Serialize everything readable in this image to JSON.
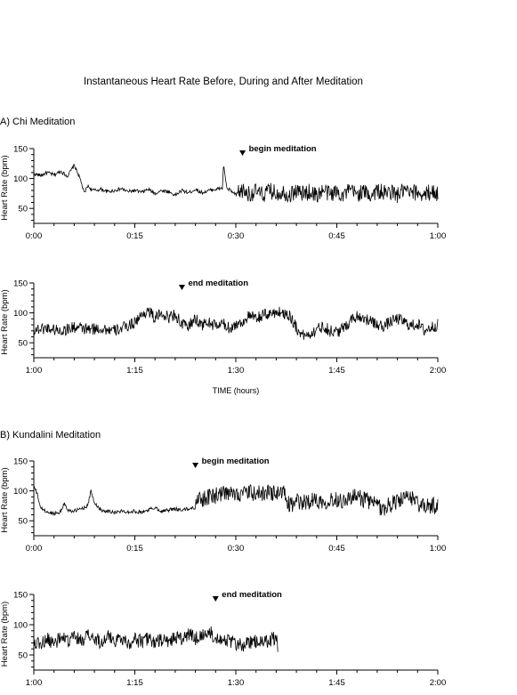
{
  "figure": {
    "title": "Instantaneous Heart Rate Before, During and After Meditation",
    "section_a": "A) Chi Meditation",
    "section_b": "B) Kundalini Meditation",
    "shared_xlabel": "TIME (hours)"
  },
  "chart_data": [
    {
      "type": "line",
      "panel": "A1",
      "ylabel": "Heart Rate (bpm)",
      "ylim": [
        25,
        150
      ],
      "yticks": [
        50,
        100,
        150
      ],
      "xlim": [
        0,
        60
      ],
      "xtick_labels": [
        "0:00",
        "0:15",
        "0:30",
        "0:45",
        "1:00"
      ],
      "annotation": {
        "text": "begin meditation",
        "x_minutes": 31
      },
      "series": [
        {
          "points": [
            [
              0,
              108
            ],
            [
              1,
              105
            ],
            [
              2,
              110
            ],
            [
              3,
              106
            ],
            [
              4,
              112
            ],
            [
              5,
              104
            ],
            [
              6,
              122
            ],
            [
              6.5,
              110
            ],
            [
              7,
              95
            ],
            [
              7.5,
              75
            ],
            [
              8,
              88
            ],
            [
              8.5,
              82
            ],
            [
              9,
              80
            ],
            [
              10,
              82
            ],
            [
              11,
              78
            ],
            [
              12,
              80
            ],
            [
              13,
              83
            ],
            [
              14,
              78
            ],
            [
              15,
              80
            ],
            [
              16,
              77
            ],
            [
              17,
              82
            ],
            [
              18,
              75
            ],
            [
              19,
              80
            ],
            [
              20,
              78
            ],
            [
              21,
              72
            ],
            [
              22,
              80
            ],
            [
              23,
              76
            ],
            [
              24,
              82
            ],
            [
              25,
              76
            ],
            [
              26,
              80
            ],
            [
              27,
              82
            ],
            [
              28,
              84
            ],
            [
              28.2,
              125
            ],
            [
              28.5,
              95
            ],
            [
              28.8,
              80
            ],
            [
              29,
              82
            ],
            [
              30,
              72
            ],
            [
              31,
              80
            ],
            [
              32,
              74
            ],
            [
              33,
              78
            ],
            [
              34,
              72
            ],
            [
              35,
              80
            ],
            [
              36,
              75
            ],
            [
              37,
              78
            ],
            [
              38,
              72
            ],
            [
              39,
              80
            ],
            [
              40,
              74
            ],
            [
              41,
              78
            ],
            [
              42,
              72
            ],
            [
              43,
              80
            ],
            [
              44,
              74
            ],
            [
              45,
              78
            ],
            [
              46,
              73
            ],
            [
              47,
              80
            ],
            [
              48,
              74
            ],
            [
              49,
              78
            ],
            [
              50,
              72
            ],
            [
              51,
              80
            ],
            [
              52,
              75
            ],
            [
              53,
              78
            ],
            [
              54,
              72
            ],
            [
              55,
              80
            ],
            [
              56,
              74
            ],
            [
              57,
              78
            ],
            [
              58,
              72
            ],
            [
              59,
              79
            ],
            [
              60,
              74
            ]
          ],
          "noise_start": 30,
          "noise_amp": 14
        }
      ]
    },
    {
      "type": "line",
      "panel": "A2",
      "ylabel": "Heart Rate (bpm)",
      "ylim": [
        25,
        150
      ],
      "yticks": [
        50,
        100,
        150
      ],
      "xlim": [
        60,
        120
      ],
      "xtick_labels": [
        "1:00",
        "1:15",
        "1:30",
        "1:45",
        "2:00"
      ],
      "annotation": {
        "text": "end meditation",
        "x_minutes": 82
      },
      "series": [
        {
          "points": [
            [
              60,
              72
            ],
            [
              62,
              75
            ],
            [
              64,
              70
            ],
            [
              66,
              76
            ],
            [
              68,
              72
            ],
            [
              70,
              74
            ],
            [
              72,
              70
            ],
            [
              74,
              78
            ],
            [
              75,
              85
            ],
            [
              76,
              95
            ],
            [
              77,
              105
            ],
            [
              78,
              90
            ],
            [
              79,
              100
            ],
            [
              80,
              92
            ],
            [
              81,
              98
            ],
            [
              82,
              80
            ],
            [
              83,
              78
            ],
            [
              84,
              90
            ],
            [
              85,
              80
            ],
            [
              86,
              84
            ],
            [
              87,
              78
            ],
            [
              88,
              82
            ],
            [
              89,
              75
            ],
            [
              90,
              80
            ],
            [
              91,
              85
            ],
            [
              92,
              95
            ],
            [
              93,
              90
            ],
            [
              94,
              96
            ],
            [
              95,
              98
            ],
            [
              96,
              102
            ],
            [
              97,
              100
            ],
            [
              98,
              96
            ],
            [
              99,
              75
            ],
            [
              100,
              62
            ],
            [
              101,
              65
            ],
            [
              102,
              72
            ],
            [
              103,
              78
            ],
            [
              104,
              70
            ],
            [
              105,
              68
            ],
            [
              106,
              74
            ],
            [
              107,
              88
            ],
            [
              108,
              95
            ],
            [
              109,
              92
            ],
            [
              110,
              85
            ],
            [
              111,
              80
            ],
            [
              112,
              78
            ],
            [
              113,
              85
            ],
            [
              114,
              90
            ],
            [
              115,
              85
            ],
            [
              116,
              78
            ],
            [
              117,
              82
            ],
            [
              118,
              70
            ],
            [
              119,
              76
            ],
            [
              120,
              80
            ]
          ],
          "noise_start": 60,
          "noise_amp": 10
        }
      ]
    },
    {
      "type": "line",
      "panel": "B1",
      "ylabel": "Heart Rate (bpm)",
      "ylim": [
        25,
        150
      ],
      "yticks": [
        50,
        100,
        150
      ],
      "xlim": [
        0,
        60
      ],
      "xtick_labels": [
        "0:00",
        "0:15",
        "0:30",
        "0:45",
        "1:00"
      ],
      "annotation": {
        "text": "begin meditation",
        "x_minutes": 24
      },
      "series": [
        {
          "points": [
            [
              0,
              108
            ],
            [
              0.5,
              95
            ],
            [
              1,
              72
            ],
            [
              2,
              64
            ],
            [
              3,
              62
            ],
            [
              4,
              65
            ],
            [
              4.5,
              80
            ],
            [
              5,
              68
            ],
            [
              6,
              66
            ],
            [
              7,
              70
            ],
            [
              8,
              75
            ],
            [
              8.5,
              100
            ],
            [
              9,
              80
            ],
            [
              10,
              68
            ],
            [
              11,
              66
            ],
            [
              12,
              64
            ],
            [
              13,
              66
            ],
            [
              14,
              65
            ],
            [
              15,
              66
            ],
            [
              16,
              64
            ],
            [
              17,
              68
            ],
            [
              18,
              72
            ],
            [
              19,
              66
            ],
            [
              20,
              68
            ],
            [
              21,
              70
            ],
            [
              22,
              68
            ],
            [
              23,
              70
            ],
            [
              24,
              72
            ],
            [
              24.5,
              95
            ],
            [
              25,
              85
            ],
            [
              26,
              90
            ],
            [
              27,
              92
            ],
            [
              28,
              95
            ],
            [
              29,
              94
            ],
            [
              30,
              96
            ],
            [
              31,
              95
            ],
            [
              32,
              97
            ],
            [
              33,
              95
            ],
            [
              34,
              96
            ],
            [
              35,
              98
            ],
            [
              36,
              95
            ],
            [
              37,
              98
            ],
            [
              38,
              75
            ],
            [
              39,
              82
            ],
            [
              40,
              80
            ],
            [
              41,
              84
            ],
            [
              42,
              85
            ],
            [
              43,
              82
            ],
            [
              44,
              85
            ],
            [
              45,
              86
            ],
            [
              46,
              84
            ],
            [
              47,
              88
            ],
            [
              48,
              90
            ],
            [
              49,
              86
            ],
            [
              50,
              82
            ],
            [
              51,
              75
            ],
            [
              52,
              70
            ],
            [
              53,
              78
            ],
            [
              54,
              84
            ],
            [
              55,
              85
            ],
            [
              56,
              90
            ],
            [
              57,
              80
            ],
            [
              58,
              72
            ],
            [
              59,
              76
            ],
            [
              60,
              74
            ]
          ],
          "noise_start": 24,
          "noise_amp": 14
        }
      ]
    },
    {
      "type": "line",
      "panel": "B2",
      "ylabel": "Heart Rate (bpm)",
      "ylim": [
        25,
        150
      ],
      "yticks": [
        50,
        100,
        150
      ],
      "xlim": [
        60,
        120
      ],
      "xtick_labels": [
        "1:00",
        "1:15",
        "1:30",
        "1:45",
        "2:00"
      ],
      "annotation": {
        "text": "end meditation",
        "x_minutes": 87
      },
      "series": [
        {
          "points": [
            [
              60,
              72
            ],
            [
              61,
              68
            ],
            [
              62,
              75
            ],
            [
              63,
              70
            ],
            [
              64,
              78
            ],
            [
              65,
              72
            ],
            [
              66,
              80
            ],
            [
              67,
              74
            ],
            [
              68,
              82
            ],
            [
              69,
              76
            ],
            [
              70,
              72
            ],
            [
              71,
              80
            ],
            [
              72,
              75
            ],
            [
              73,
              78
            ],
            [
              74,
              70
            ],
            [
              75,
              76
            ],
            [
              76,
              72
            ],
            [
              77,
              78
            ],
            [
              78,
              70
            ],
            [
              79,
              74
            ],
            [
              80,
              72
            ],
            [
              81,
              80
            ],
            [
              82,
              76
            ],
            [
              83,
              84
            ],
            [
              84,
              78
            ],
            [
              85,
              82
            ],
            [
              86,
              88
            ],
            [
              87,
              80
            ],
            [
              88,
              78
            ],
            [
              89,
              72
            ],
            [
              90,
              68
            ],
            [
              91,
              66
            ],
            [
              92,
              70
            ],
            [
              93,
              72
            ],
            [
              94,
              68
            ],
            [
              95,
              75
            ],
            [
              96,
              78
            ],
            [
              96.3,
              60
            ]
          ],
          "noise_start": 60,
          "noise_amp": 12
        }
      ]
    }
  ]
}
